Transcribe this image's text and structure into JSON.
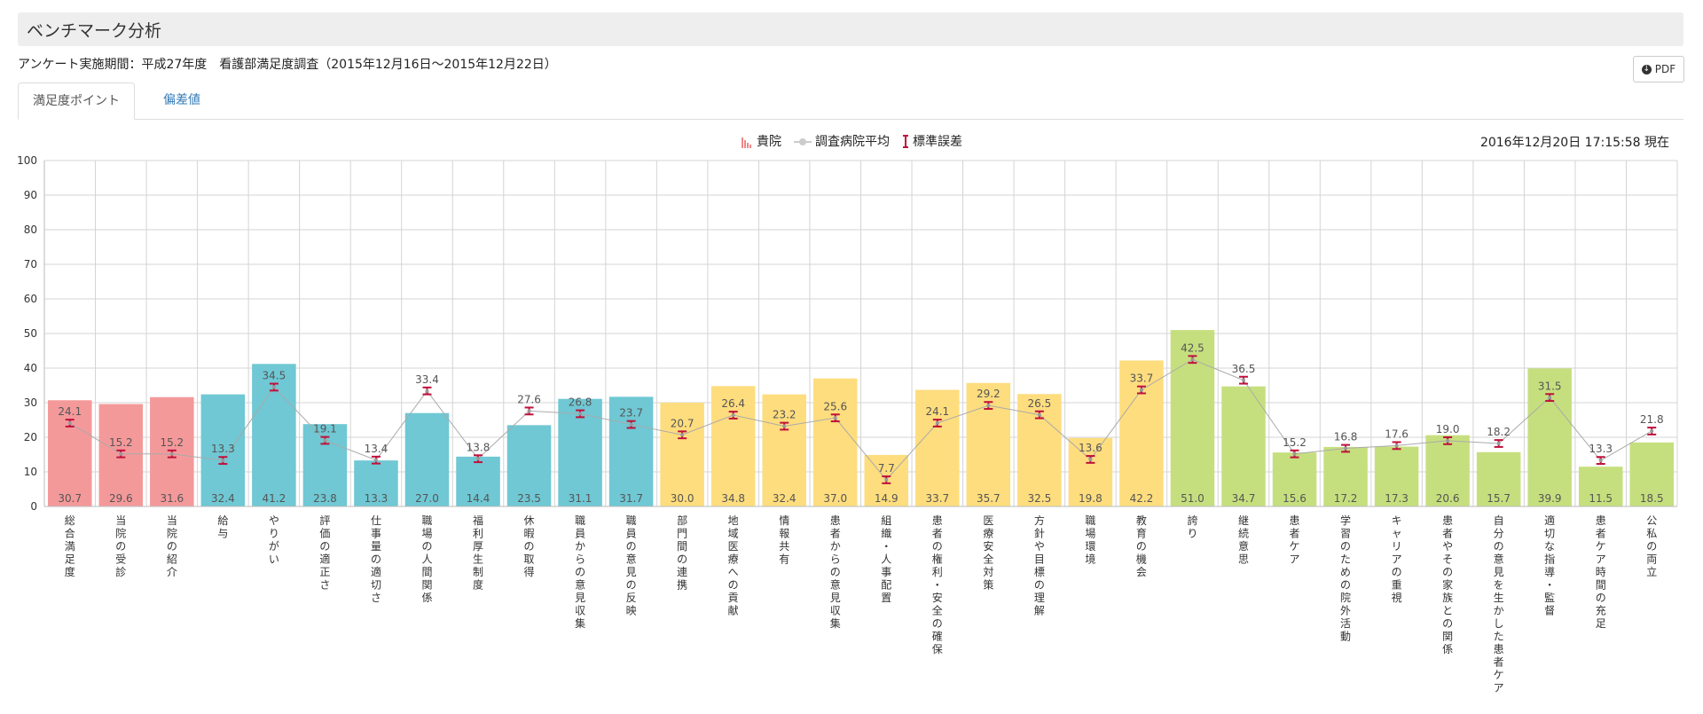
{
  "header": {
    "title": "ベンチマーク分析"
  },
  "survey": {
    "period": "アンケート実施期間：平成27年度　看護部満足度調査（2015年12月16日～2015年12月22日）"
  },
  "toolbar": {
    "pdf_label": "PDF",
    "pdf_icon": "download-icon"
  },
  "tabs": [
    {
      "label": "満足度ポイント",
      "active": true
    },
    {
      "label": "偏差値",
      "active": false
    }
  ],
  "timestamp": "2016年12月20日 17:15:58 現在",
  "chart_data": {
    "type": "bar",
    "title": "",
    "xlabel": "",
    "ylabel": "",
    "ylim": [
      0,
      100
    ],
    "yticks": [
      0,
      10,
      20,
      30,
      40,
      50,
      60,
      70,
      80,
      90,
      100
    ],
    "grid": true,
    "legend": {
      "placement": "top-center",
      "items": [
        {
          "label": "貴院",
          "marker": "bar"
        },
        {
          "label": "調査病院平均",
          "marker": "line"
        },
        {
          "label": "標準誤差",
          "marker": "errorbar"
        }
      ]
    },
    "categories": [
      "総合満足度",
      "当院の受診",
      "当院の紹介",
      "給与",
      "やりがい",
      "評価の適正さ",
      "仕事量の適切さ",
      "職場の人間関係",
      "福利厚生制度",
      "休暇の取得",
      "職員からの意見収集",
      "職員の意見の反映",
      "部門間の連携",
      "地域医療への貢献",
      "情報共有",
      "患者からの意見収集",
      "組織・人事配置",
      "患者の権利・安全の確保",
      "医療安全対策",
      "方針や目標の理解",
      "職場環境",
      "教育の機会",
      "誇り",
      "継続意思",
      "患者ケア",
      "学習のための院外活動",
      "キャリアの重視",
      "患者やその家族との関係",
      "自分の意見を生かした患者ケア",
      "適切な指導・監督",
      "患者ケア時間の充足",
      "公私の両立"
    ],
    "series": [
      {
        "name": "貴院",
        "type": "bar",
        "values": [
          30.7,
          29.6,
          31.6,
          32.4,
          41.2,
          23.8,
          13.3,
          27.0,
          14.4,
          23.5,
          31.1,
          31.7,
          30.0,
          34.8,
          32.4,
          37.0,
          14.9,
          33.7,
          35.7,
          32.5,
          19.8,
          42.2,
          51.0,
          34.7,
          15.6,
          17.2,
          17.3,
          20.6,
          15.7,
          39.9,
          11.5,
          18.5
        ]
      },
      {
        "name": "調査病院平均",
        "type": "line",
        "values": [
          24.1,
          15.2,
          15.2,
          13.3,
          34.5,
          19.1,
          13.4,
          33.4,
          13.8,
          27.6,
          26.8,
          23.7,
          20.7,
          26.4,
          23.2,
          25.6,
          7.7,
          24.1,
          29.2,
          26.5,
          13.6,
          33.7,
          42.5,
          36.5,
          15.2,
          16.8,
          17.6,
          19.0,
          18.2,
          31.5,
          13.3,
          21.8
        ],
        "error": 1.0
      }
    ],
    "colors": {
      "group_pink": "#f4999a",
      "group_teal": "#6fc8d4",
      "group_yellow": "#fedd7e",
      "group_green": "#c6df7e",
      "errorbar": "#c0123c",
      "avg_line": "#aaaaaa"
    },
    "category_groups": [
      "pink",
      "pink",
      "pink",
      "teal",
      "teal",
      "teal",
      "teal",
      "teal",
      "teal",
      "teal",
      "teal",
      "teal",
      "yellow",
      "yellow",
      "yellow",
      "yellow",
      "yellow",
      "yellow",
      "yellow",
      "yellow",
      "yellow",
      "yellow",
      "green",
      "green",
      "green",
      "green",
      "green",
      "green",
      "green",
      "green",
      "green",
      "green"
    ]
  }
}
